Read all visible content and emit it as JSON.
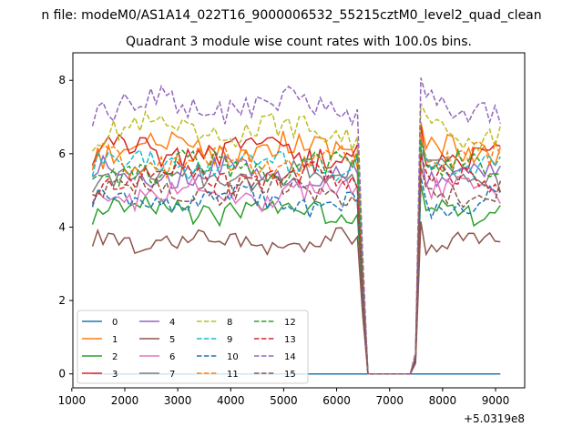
{
  "chart_data": {
    "type": "line",
    "suptitle": "n file: modeM0/AS1A14_022T16_9000006532_55215cztM0_level2_quad_clean",
    "title": "Quadrant 3 module wise count rates with 100.0s bins.",
    "xlabel": "",
    "ylabel": "",
    "x_offset_label": "+5.0319e8",
    "xlim": [
      1020,
      9550
    ],
    "ylim": [
      -0.38,
      8.75
    ],
    "x_ticks": [
      1000,
      2000,
      3000,
      4000,
      5000,
      6000,
      7000,
      8000,
      9000
    ],
    "x_tick_labels": [
      "1000",
      "2000",
      "3000",
      "4000",
      "5000",
      "6000",
      "7000",
      "8000",
      "9000"
    ],
    "y_ticks": [
      0,
      2,
      4,
      6,
      8
    ],
    "y_tick_labels": [
      "0",
      "2",
      "4",
      "6",
      "8"
    ],
    "grid": false,
    "legend_position": "lower-left",
    "legend_ncol": 4,
    "series": [
      {
        "name": "0",
        "color": "#1f77b4",
        "dash": "solid",
        "level": 0,
        "amp": 0,
        "phase": 0
      },
      {
        "name": "1",
        "color": "#ff7f0e",
        "dash": "solid",
        "level": 6.1,
        "amp": 0.35,
        "phase": 1
      },
      {
        "name": "2",
        "color": "#2ca02c",
        "dash": "solid",
        "level": 4.5,
        "amp": 0.3,
        "phase": 2
      },
      {
        "name": "3",
        "color": "#d62728",
        "dash": "solid",
        "level": 6.0,
        "amp": 0.35,
        "phase": 3
      },
      {
        "name": "4",
        "color": "#9467bd",
        "dash": "solid",
        "level": 5.5,
        "amp": 0.3,
        "phase": 4
      },
      {
        "name": "5",
        "color": "#8c564b",
        "dash": "solid",
        "level": 3.6,
        "amp": 0.25,
        "phase": 5
      },
      {
        "name": "6",
        "color": "#e377c2",
        "dash": "solid",
        "level": 4.9,
        "amp": 0.3,
        "phase": 6
      },
      {
        "name": "7",
        "color": "#7f7f7f",
        "dash": "solid",
        "level": 5.4,
        "amp": 0.3,
        "phase": 7
      },
      {
        "name": "8",
        "color": "#bcbd22",
        "dash": "dashed",
        "level": 6.6,
        "amp": 0.35,
        "phase": 8
      },
      {
        "name": "9",
        "color": "#17becf",
        "dash": "dashed",
        "level": 5.7,
        "amp": 0.3,
        "phase": 9
      },
      {
        "name": "10",
        "color": "#1f77b4",
        "dash": "dashed",
        "level": 4.7,
        "amp": 0.3,
        "phase": 10
      },
      {
        "name": "11",
        "color": "#ff7f0e",
        "dash": "dashed",
        "level": 5.8,
        "amp": 0.35,
        "phase": 11
      },
      {
        "name": "12",
        "color": "#2ca02c",
        "dash": "dashed",
        "level": 5.6,
        "amp": 0.35,
        "phase": 12
      },
      {
        "name": "13",
        "color": "#d62728",
        "dash": "dashed",
        "level": 5.3,
        "amp": 0.3,
        "phase": 13
      },
      {
        "name": "14",
        "color": "#9467bd",
        "dash": "dashed",
        "level": 7.3,
        "amp": 0.35,
        "phase": 14
      },
      {
        "name": "15",
        "color": "#8c564b",
        "dash": "dashed",
        "level": 5.0,
        "amp": 0.3,
        "phase": 15
      }
    ],
    "time_profile": {
      "start": 1390,
      "step": 100,
      "count": 78,
      "gap_start": 6590,
      "gap_end": 7390,
      "pre_gap_drop_at": 6490,
      "post_gap_ramp": [
        7490,
        7590
      ]
    }
  }
}
